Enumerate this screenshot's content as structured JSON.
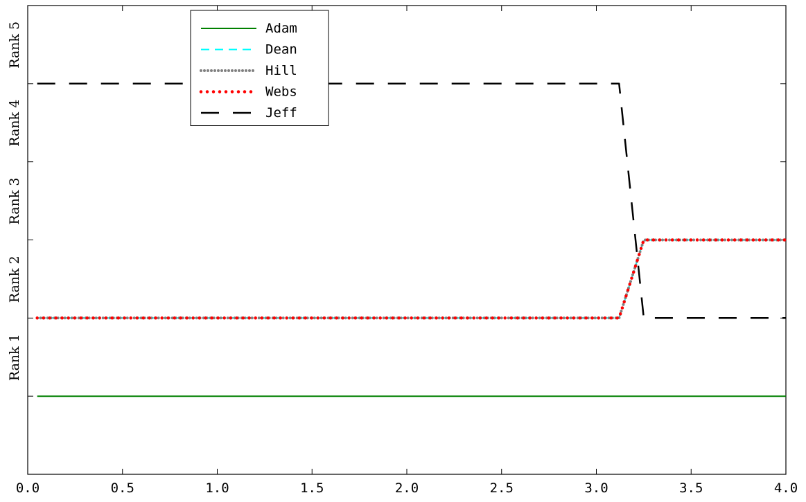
{
  "chart_data": {
    "type": "line",
    "xlim": [
      0.0,
      4.0
    ],
    "ylim": [
      0,
      6
    ],
    "xticks": [
      0.0,
      0.5,
      1.0,
      1.5,
      2.0,
      2.5,
      3.0,
      3.5,
      4.0
    ],
    "xtick_labels": [
      "0.0",
      "0.5",
      "1.0",
      "1.5",
      "2.0",
      "2.5",
      "3.0",
      "3.5",
      "4.0"
    ],
    "yticks": [
      1,
      2,
      3,
      4,
      5
    ],
    "ytick_labels": [
      "Rank 1",
      "Rank 2",
      "Rank 3",
      "Rank 4",
      "Rank 5"
    ],
    "grid": false,
    "legend_position": "top-left",
    "series": [
      {
        "name": "Adam",
        "color": "#008000",
        "style": "solid",
        "x": [
          0.05,
          4.0
        ],
        "y": [
          1,
          1
        ]
      },
      {
        "name": "Dean",
        "color": "#00ffff",
        "style": "dashed",
        "x": [
          0.05,
          3.12,
          3.25,
          4.0
        ],
        "y": [
          2,
          2,
          3,
          3
        ]
      },
      {
        "name": "Hill",
        "color": "#808080",
        "style": "dotted-fine",
        "x": [
          0.05,
          3.12,
          3.25,
          4.0
        ],
        "y": [
          2,
          2,
          3,
          3
        ]
      },
      {
        "name": "Webs",
        "color": "#ff0000",
        "style": "dotted",
        "x": [
          0.05,
          3.12,
          3.25,
          4.0
        ],
        "y": [
          2,
          2,
          3,
          3
        ]
      },
      {
        "name": "Jeff",
        "color": "#000000",
        "style": "long-dash",
        "x": [
          0.05,
          3.12,
          3.25,
          4.0
        ],
        "y": [
          5,
          5,
          2,
          2
        ]
      }
    ]
  }
}
